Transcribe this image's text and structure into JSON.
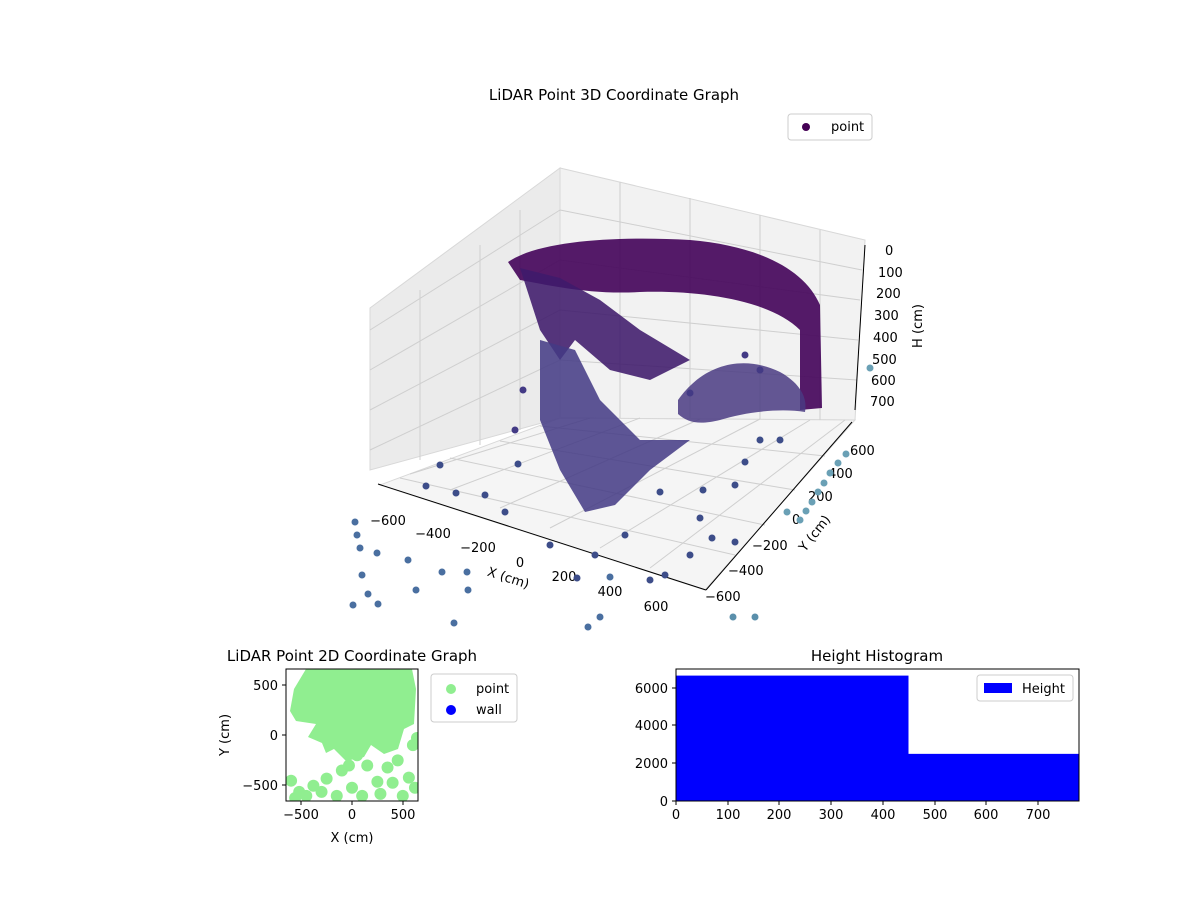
{
  "chart_data": [
    {
      "type": "scatter",
      "projection": "3d",
      "title": "LiDAR Point 3D Coordinate Graph",
      "xlabel": "X (cm)",
      "ylabel": "Y (cm)",
      "zlabel": "H (cm)",
      "xlim": [
        -700,
        700
      ],
      "ylim": [
        -700,
        700
      ],
      "zlim": [
        780,
        0
      ],
      "zaxis_inverted": true,
      "xticks": [
        "−600",
        "−400",
        "−200",
        "0",
        "200",
        "400",
        "600"
      ],
      "yticks": [
        "−600",
        "−400",
        "−200",
        "0",
        "200",
        "400",
        "600"
      ],
      "zticks": [
        "0",
        "100",
        "200",
        "300",
        "400",
        "500",
        "600",
        "700"
      ],
      "colormap": "viridis",
      "grid": true,
      "legend": {
        "entries": [
          "point"
        ],
        "placement": "top-right"
      },
      "series": [
        {
          "name": "point",
          "color": "#440154",
          "shapes": [
            {
              "part": "ceiling-dome",
              "x_range": [
                -550,
                550
              ],
              "y_range": [
                -200,
                650
              ],
              "h_range": [
                0,
                450
              ]
            },
            {
              "part": "front-wall-arc",
              "x_range": [
                -200,
                600
              ],
              "y_range": [
                -600,
                600
              ],
              "h_range": [
                0,
                400
              ]
            },
            {
              "part": "floor-scatter",
              "x_range": [
                -650,
                650
              ],
              "y_range": [
                -650,
                650
              ],
              "h_range": [
                600,
                780
              ]
            }
          ],
          "sample_points": [
            [
              -600,
              450,
              650
            ],
            [
              -400,
              -500,
              720
            ],
            [
              -200,
              300,
              700
            ],
            [
              0,
              -300,
              680
            ],
            [
              150,
              500,
              650
            ],
            [
              300,
              -600,
              740
            ],
            [
              500,
              200,
              690
            ],
            [
              600,
              -400,
              710
            ],
            [
              -450,
              100,
              620
            ],
            [
              250,
              -150,
              600
            ],
            [
              -100,
              -600,
              760
            ],
            [
              400,
              550,
              700
            ]
          ]
        }
      ]
    },
    {
      "type": "scatter",
      "title": "LiDAR Point 2D Coordinate Graph",
      "xlabel": "X (cm)",
      "ylabel": "Y (cm)",
      "xlim": [
        -650,
        650
      ],
      "ylim": [
        -650,
        650
      ],
      "xticks": [
        "−500",
        "0",
        "500"
      ],
      "yticks": [
        "−500",
        "0",
        "500"
      ],
      "legend": {
        "entries": [
          "point",
          "wall"
        ],
        "placement": "outside-right"
      },
      "series": [
        {
          "name": "point",
          "color": "#90ee90",
          "points": [
            [
              -600,
              -450
            ],
            [
              -520,
              -560
            ],
            [
              -450,
              -600
            ],
            [
              -380,
              -500
            ],
            [
              -300,
              -560
            ],
            [
              -250,
              -430
            ],
            [
              -150,
              -600
            ],
            [
              -100,
              -350
            ],
            [
              -30,
              -300
            ],
            [
              0,
              -520
            ],
            [
              50,
              -200
            ],
            [
              100,
              -600
            ],
            [
              150,
              -300
            ],
            [
              250,
              -460
            ],
            [
              280,
              -580
            ],
            [
              350,
              -320
            ],
            [
              400,
              -470
            ],
            [
              450,
              -250
            ],
            [
              500,
              -600
            ],
            [
              560,
              -420
            ],
            [
              620,
              -520
            ],
            [
              600,
              -100
            ],
            [
              640,
              -30
            ],
            [
              -150,
              50
            ],
            [
              -100,
              -100
            ],
            [
              0,
              0
            ],
            [
              100,
              80
            ],
            [
              -20,
              150
            ],
            [
              50,
              -120
            ],
            [
              -560,
              -620
            ]
          ]
        },
        {
          "name": "wall",
          "color": "#0000ff",
          "points": []
        }
      ]
    },
    {
      "type": "bar",
      "subtype": "histogram",
      "title": "Height Histogram",
      "xlim": [
        0,
        780
      ],
      "ylim": [
        0,
        7000
      ],
      "xticks": [
        "0",
        "100",
        "200",
        "300",
        "400",
        "500",
        "600",
        "700"
      ],
      "yticks": [
        "0",
        "2000",
        "4000",
        "6000"
      ],
      "legend": {
        "entries": [
          "Height"
        ],
        "placement": "top-right"
      },
      "series": [
        {
          "name": "Height",
          "color": "#0000ff",
          "bins": [
            {
              "from": 0,
              "to": 450,
              "count": 6650
            },
            {
              "from": 450,
              "to": 780,
              "count": 2500
            }
          ]
        }
      ]
    }
  ]
}
